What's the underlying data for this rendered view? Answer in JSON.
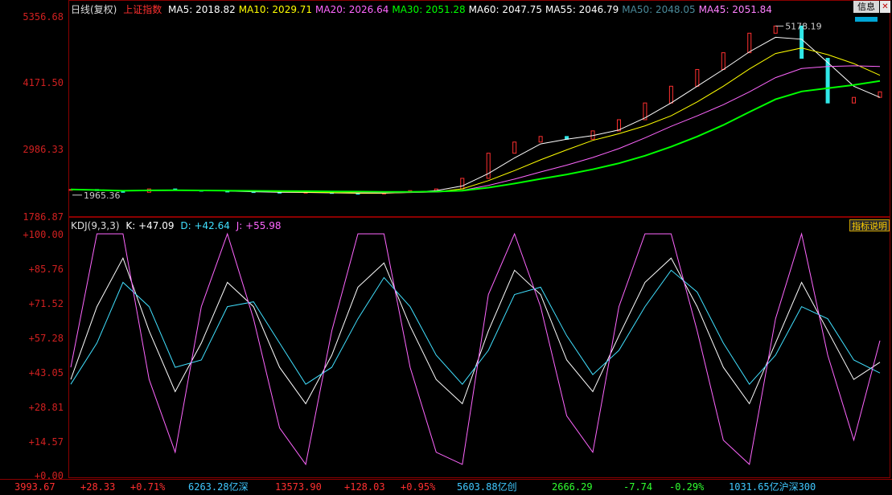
{
  "main_panel": {
    "period": "日线(复权)",
    "index_name": "上证指数",
    "ma": [
      {
        "label": "MA5: 2018.82",
        "color": "#ffffff"
      },
      {
        "label": "MA10: 2029.71",
        "color": "#ffff00"
      },
      {
        "label": "MA20: 2026.64",
        "color": "#ff66ff"
      },
      {
        "label": "MA30: 2051.28",
        "color": "#00ff00"
      },
      {
        "label": "MA60: 2047.75",
        "color": "#ffffff"
      },
      {
        "label": "MA55: 2046.79",
        "color": "#ffffff"
      },
      {
        "label": "MA50: 2048.05",
        "color": "#4a8a9a"
      },
      {
        "label": "MA45: 2051.84",
        "color": "#ff80ff"
      }
    ],
    "y_labels": [
      "5356.68",
      "4171.50",
      "2986.33",
      "1786.87"
    ],
    "high_marker": "5178.19",
    "low_marker": "1965.36",
    "info_button": "信息",
    "close_button": "✕"
  },
  "kdj_panel": {
    "title": "KDJ(9,3,3)",
    "k": "K: +47.09",
    "d": "D: +42.64",
    "j": "J: +55.98",
    "explain_button": "指标说明",
    "y_labels": [
      "+100.00",
      "+85.76",
      "+71.52",
      "+57.28",
      "+43.05",
      "+28.81",
      "+14.57",
      "+0.00"
    ]
  },
  "chart_data": [
    {
      "type": "line",
      "title": "上证指数",
      "ylim": [
        1786.87,
        5356.68
      ],
      "series": [
        {
          "name": "上证指数",
          "values": [
            2250,
            2230,
            2200,
            2260,
            2240,
            2220,
            2210,
            2200,
            2190,
            2200,
            2180,
            2170,
            2200,
            2230,
            2260,
            2450,
            2900,
            3100,
            3200,
            3150,
            3300,
            3500,
            3800,
            4100,
            4400,
            4700,
            5050,
            5178.19,
            4600,
            3800,
            3900,
            4000
          ]
        }
      ]
    },
    {
      "type": "line",
      "title": "KDJ(9,3,3)",
      "ylim": [
        0,
        100
      ],
      "series": [
        {
          "name": "K",
          "values": [
            40,
            70,
            90,
            60,
            35,
            55,
            80,
            70,
            45,
            30,
            50,
            78,
            88,
            62,
            40,
            30,
            60,
            85,
            75,
            48,
            35,
            58,
            80,
            90,
            70,
            45,
            30,
            55,
            80,
            60,
            40,
            47.09
          ]
        },
        {
          "name": "D",
          "values": [
            38,
            55,
            80,
            70,
            45,
            48,
            70,
            72,
            55,
            38,
            45,
            65,
            82,
            70,
            50,
            38,
            52,
            75,
            78,
            58,
            42,
            52,
            70,
            85,
            76,
            55,
            38,
            50,
            70,
            65,
            48,
            42.64
          ]
        },
        {
          "name": "J",
          "values": [
            45,
            100,
            100,
            40,
            10,
            70,
            100,
            65,
            20,
            5,
            60,
            100,
            100,
            45,
            10,
            5,
            75,
            100,
            70,
            25,
            10,
            70,
            100,
            100,
            60,
            15,
            5,
            65,
            100,
            50,
            15,
            55.98
          ]
        }
      ]
    }
  ],
  "statusbar": [
    {
      "text": "3993.67",
      "color": "#ff3030"
    },
    {
      "text": "+28.33",
      "color": "#ff3030"
    },
    {
      "text": "+0.71%",
      "color": "#ff3030"
    },
    {
      "text": "6263.28亿深",
      "color": "#40c8ff"
    },
    {
      "text": "13573.90",
      "color": "#ff3030"
    },
    {
      "text": "+128.03",
      "color": "#ff3030"
    },
    {
      "text": "+0.95%",
      "color": "#ff3030"
    },
    {
      "text": "5603.88亿创",
      "color": "#40c8ff"
    },
    {
      "text": "2666.29",
      "color": "#30ff30"
    },
    {
      "text": "-7.74",
      "color": "#30ff30"
    },
    {
      "text": "-0.29%",
      "color": "#30ff30"
    },
    {
      "text": "1031.65亿沪深300",
      "color": "#40c8ff"
    }
  ]
}
